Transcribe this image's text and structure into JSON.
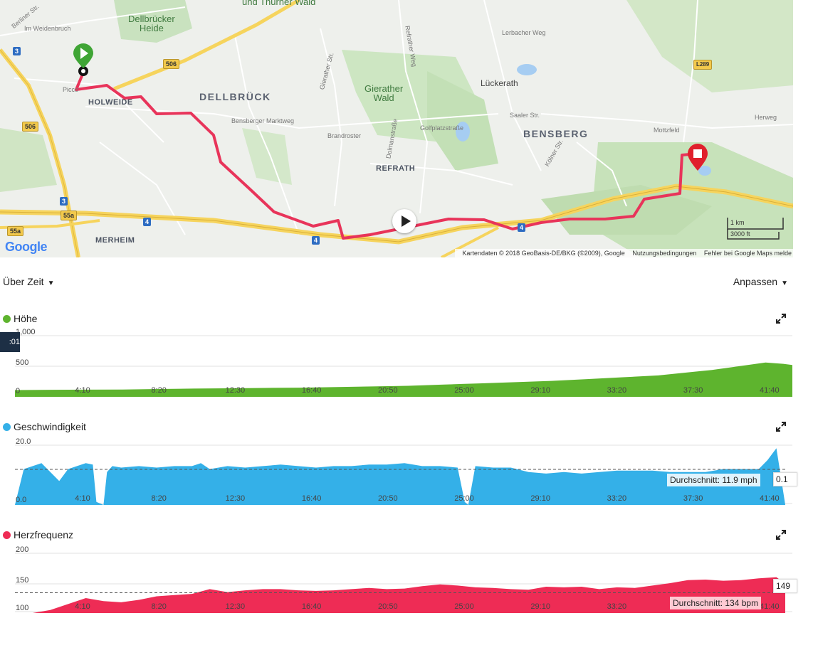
{
  "map": {
    "places": {
      "dellbrueck": "DELLBRÜCK",
      "holweide": "HOLWEIDE",
      "bensberg": "BENSBERG",
      "refrath": "REFRATH",
      "merheim": "MERHEIM",
      "lueckerath": "Lückerath",
      "thurner_wald": "und Thurner\nWald",
      "dellbruecker_heide": "Dellbrücker\nHeide",
      "gierather_wald": "Gierather\nWald"
    },
    "streets": {
      "bensberger_marktweg": "Bensberger Marktweg",
      "brandroster": "Brandroster",
      "golfplatzstrasse": "Golfplatzstraße",
      "saaler_str": "Saaler Str.",
      "herweg": "Herweg",
      "mottzfeld": "Mottzfeld",
      "lerbacher_weg": "Lerbacher Weg",
      "im_weidenbruch": "Im Weidenbruch",
      "berliner_str": "Berliner Str.",
      "piccoloministr": "Picco",
      "koelner_str": "Kölner Str.",
      "dolmanstrasse": "Dolmanstraße",
      "refrather_weg": "Refrather Weg",
      "gierather_str": "Gierather Str."
    },
    "shields": {
      "a3_top": "3",
      "b506_top": "506",
      "b506_left": "506",
      "a3_mid": "3",
      "b55a": "55a",
      "b55a_left": "55a",
      "a4_mid": "4",
      "a4_bottom": "4",
      "a4_right": "4",
      "l289": "L289"
    },
    "attribution": "Kartendaten © 2018 GeoBasis-DE/BKG (©2009), Google",
    "terms": "Nutzungsbedingungen",
    "report": "Fehler bei Google Maps melde",
    "scale_km": "1 km",
    "scale_ft": "3000 ft",
    "google_logo": "Google",
    "colors": {
      "route": "#e8345a",
      "start": "#3fa535",
      "end": "#e0202c"
    }
  },
  "toolbar": {
    "left_label": "Über Zeit",
    "right_label": "Anpassen"
  },
  "hover_value": ":01",
  "chart_data": [
    {
      "type": "area",
      "title": "Höhe",
      "color": "#5eb42e",
      "x_tick_labels": [
        "4:10",
        "8:20",
        "12:30",
        "16:40",
        "20:50",
        "25:00",
        "29:10",
        "33:20",
        "37:30",
        "41:40"
      ],
      "y_tick_labels": [
        "1,000",
        "500",
        "0"
      ],
      "ylim": [
        0,
        1000
      ],
      "xlim": [
        0,
        43.5
      ],
      "x": [
        0,
        2,
        4,
        6,
        8,
        10,
        12,
        14,
        16,
        18,
        20,
        22,
        24,
        25,
        26,
        28,
        30,
        32,
        34,
        36,
        38,
        39,
        40,
        41,
        42,
        43,
        43.5
      ],
      "y": [
        110,
        115,
        118,
        120,
        128,
        135,
        140,
        145,
        150,
        160,
        170,
        180,
        200,
        210,
        220,
        240,
        260,
        290,
        320,
        350,
        410,
        440,
        480,
        520,
        560,
        540,
        520
      ]
    },
    {
      "type": "area",
      "title": "Geschwindigkeit",
      "color": "#34b0e8",
      "x_tick_labels": [
        "4:10",
        "8:20",
        "12:30",
        "16:40",
        "20:50",
        "25:00",
        "29:10",
        "33:20",
        "37:30",
        "41:40"
      ],
      "y_tick_labels": [
        "20.0",
        "0.0"
      ],
      "ylim": [
        0,
        20
      ],
      "xlim": [
        0,
        43.5
      ],
      "average_label": "Durchschnitt: 11.9 mph",
      "average": 11.9,
      "current_value": "0.1",
      "x": [
        0,
        0.5,
        1,
        1.5,
        2,
        2.5,
        3,
        3.5,
        4,
        4.4,
        4.6,
        5,
        5.2,
        5.5,
        6,
        7,
        8,
        9,
        10,
        10.5,
        11,
        12,
        13,
        14,
        15,
        16,
        17,
        18,
        19,
        20,
        21,
        22,
        23,
        24,
        25,
        25.4,
        25.6,
        26,
        27,
        28,
        29,
        30,
        31,
        32,
        33,
        34,
        35,
        36,
        37,
        38,
        39,
        40,
        41,
        42,
        42.5,
        43,
        43.5
      ],
      "y": [
        0,
        12,
        13,
        14,
        11,
        8,
        12,
        13,
        14,
        13.5,
        1,
        0,
        11,
        13,
        12.5,
        13,
        12.5,
        13,
        13,
        14,
        12,
        13,
        12.5,
        13,
        13.5,
        13,
        12.5,
        13,
        13,
        13.5,
        13.5,
        14,
        13,
        13,
        12.5,
        1,
        0,
        13,
        12.5,
        12.5,
        11,
        10.5,
        11,
        10.5,
        11,
        11.5,
        11.5,
        11.5,
        11,
        11,
        11,
        12,
        12,
        12,
        15,
        19,
        0.1
      ]
    },
    {
      "type": "area",
      "title": "Herzfrequenz",
      "color": "#ee2c55",
      "x_tick_labels": [
        "4:10",
        "8:20",
        "12:30",
        "16:40",
        "20:50",
        "25:00",
        "29:10",
        "33:20",
        "37:30",
        "41:40"
      ],
      "y_tick_labels": [
        "200",
        "150",
        "100"
      ],
      "ylim": [
        100,
        200
      ],
      "xlim": [
        0,
        43.5
      ],
      "average_label": "Durchschnitt: 134 bpm",
      "average": 134,
      "current_value": "149",
      "x": [
        0,
        1,
        2,
        3,
        4,
        5,
        6,
        7,
        8,
        9,
        10,
        11,
        12,
        13,
        14,
        15,
        16,
        17,
        18,
        19,
        20,
        21,
        22,
        23,
        24,
        25,
        26,
        27,
        28,
        29,
        30,
        31,
        32,
        33,
        34,
        35,
        36,
        37,
        38,
        39,
        40,
        41,
        42,
        43,
        43.5
      ],
      "y": [
        100,
        100,
        105,
        115,
        125,
        120,
        118,
        122,
        128,
        130,
        132,
        140,
        135,
        138,
        140,
        140,
        138,
        137,
        138,
        140,
        142,
        140,
        141,
        145,
        148,
        146,
        143,
        142,
        140,
        139,
        144,
        143,
        144,
        140,
        143,
        142,
        146,
        150,
        155,
        156,
        154,
        155,
        158,
        160,
        149
      ]
    }
  ]
}
